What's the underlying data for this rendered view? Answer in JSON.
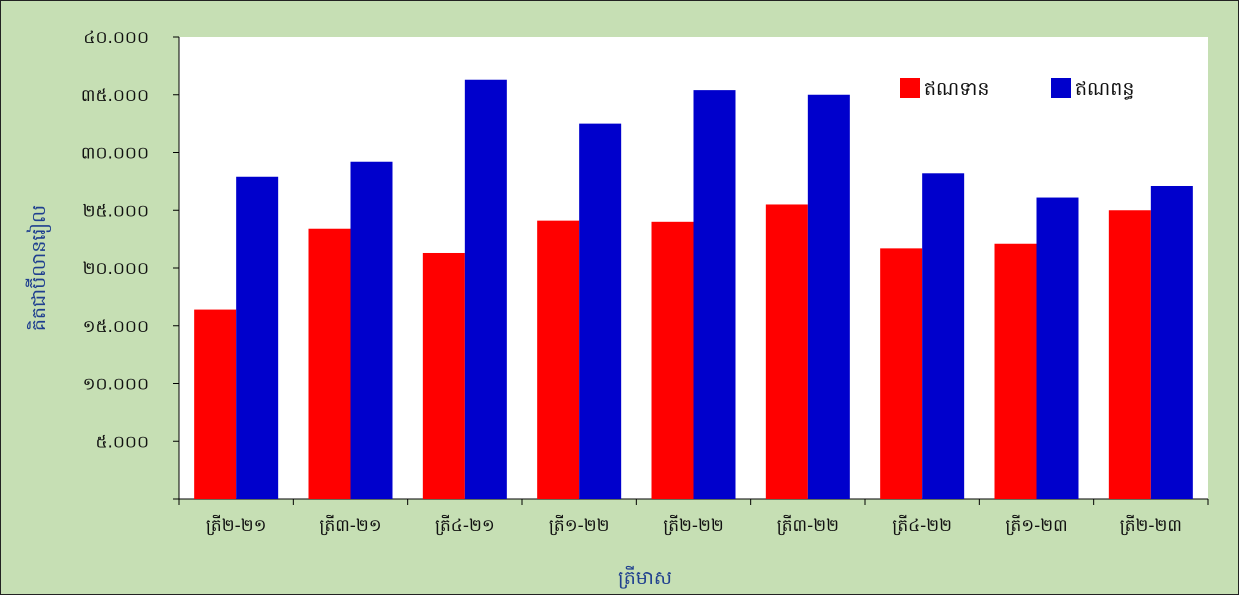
{
  "chart_data": {
    "type": "bar",
    "title": "",
    "xlabel": "ត្រីមាស",
    "ylabel": "គិតជាប៊ីលានរៀល",
    "ylim": [
      0,
      40000
    ],
    "y_ticks": [
      "",
      "៥.០០០",
      "១០.០០០",
      "១៥.០០០",
      "២០.០០០",
      "២៥.០០០",
      "៣០.០០០",
      "៣៥.០០០",
      "៤០.០០០"
    ],
    "categories": [
      "ត្រី២-២១",
      "ត្រី៣-២១",
      "ត្រី៤-២១",
      "ត្រី១-២២",
      "ត្រី២-២២",
      "ត្រី៣-២២",
      "ត្រី៤-២២",
      "ត្រី១-២៣",
      "ត្រី២-២៣"
    ],
    "series": [
      {
        "name": "ឥណទាន",
        "color": "#ff0000",
        "values": [
          16400,
          23400,
          21300,
          24100,
          24000,
          25500,
          21700,
          22100,
          25000
        ]
      },
      {
        "name": "ឥណពន្ធ",
        "color": "#0000cc",
        "values": [
          27900,
          29200,
          36300,
          32500,
          35400,
          35000,
          28200,
          26100,
          27100
        ]
      }
    ],
    "grid": false,
    "legend_position": "top-right"
  }
}
